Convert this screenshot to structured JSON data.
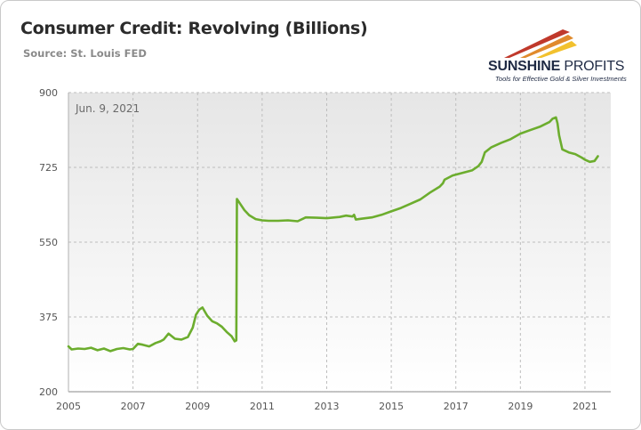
{
  "header": {
    "title": "Consumer Credit: Revolving (Billions)",
    "source": "Source: St. Louis FED"
  },
  "logo": {
    "name_bold": "SUNSHINE",
    "name_light": "PROFITS",
    "tagline": "Tools for Effective Gold & Silver Investments",
    "colors": [
      "#c0392b",
      "#e08a2c",
      "#f2c12e"
    ]
  },
  "chart_data": {
    "type": "line",
    "title": "Consumer Credit: Revolving (Billions)",
    "annotation": "Jun. 9, 2021",
    "xlabel": "",
    "ylabel": "",
    "xlim": [
      2005,
      2021.8
    ],
    "ylim": [
      200,
      900
    ],
    "x_ticks": [
      2005,
      2007,
      2009,
      2011,
      2013,
      2015,
      2017,
      2019,
      2021
    ],
    "y_ticks": [
      200,
      375,
      550,
      725,
      900
    ],
    "grid": true,
    "line_color": "#6cad2e",
    "series": [
      {
        "x": [
          2005.0,
          2005.1,
          2005.3,
          2005.5,
          2005.7,
          2005.9,
          2006.1,
          2006.3,
          2006.5,
          2006.7,
          2006.9,
          2007.0,
          2007.15,
          2007.3,
          2007.5,
          2007.7,
          2007.85,
          2007.95,
          2008.1,
          2008.3,
          2008.5,
          2008.7,
          2008.85,
          2008.95,
          2009.05,
          2009.15,
          2009.3,
          2009.45,
          2009.6,
          2009.75,
          2009.9,
          2010.05,
          2010.15,
          2010.2,
          2010.22,
          2010.3,
          2010.45,
          2010.6,
          2010.8,
          2011.0,
          2011.2,
          2011.5,
          2011.8,
          2012.1,
          2012.3,
          2012.35,
          2012.7,
          2013.0,
          2013.4,
          2013.6,
          2013.8,
          2013.85,
          2013.9,
          2014.1,
          2014.4,
          2014.7,
          2015.0,
          2015.3,
          2015.6,
          2015.9,
          2016.2,
          2016.5,
          2016.6,
          2016.65,
          2016.9,
          2017.2,
          2017.5,
          2017.7,
          2017.8,
          2017.9,
          2018.1,
          2018.4,
          2018.7,
          2019.0,
          2019.3,
          2019.6,
          2019.9,
          2020.0,
          2020.1,
          2020.15,
          2020.2,
          2020.3,
          2020.5,
          2020.7,
          2020.9,
          2021.0,
          2021.15,
          2021.3,
          2021.4
        ],
        "values": [
          306,
          299,
          301,
          300,
          303,
          297,
          301,
          295,
          300,
          302,
          299,
          300,
          312,
          310,
          306,
          314,
          318,
          322,
          336,
          324,
          322,
          328,
          350,
          380,
          392,
          397,
          378,
          365,
          360,
          352,
          340,
          330,
          318,
          320,
          651,
          642,
          625,
          613,
          604,
          601,
          600,
          600,
          601,
          599,
          606,
          608,
          607,
          606,
          609,
          612,
          610,
          614,
          603,
          605,
          608,
          614,
          622,
          630,
          640,
          650,
          666,
          680,
          688,
          696,
          706,
          712,
          718,
          728,
          738,
          760,
          772,
          782,
          791,
          804,
          812,
          820,
          831,
          839,
          842,
          828,
          800,
          767,
          760,
          756,
          748,
          743,
          738,
          740,
          751
        ]
      }
    ]
  }
}
